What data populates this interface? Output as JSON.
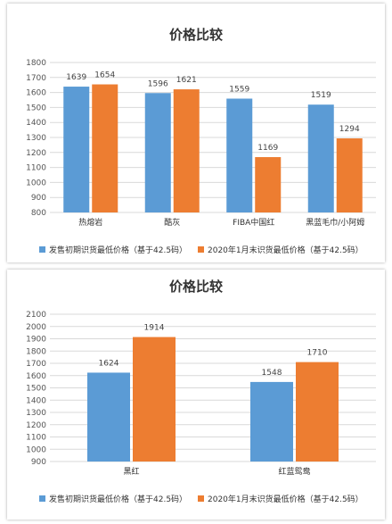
{
  "colors": {
    "series1": "#5b9bd5",
    "series2": "#ed7d31",
    "grid": "#d9d9d9"
  },
  "chart_data": [
    {
      "type": "bar",
      "title": "价格比较",
      "categories": [
        "热熔岩",
        "酷灰",
        "FIBA中国红",
        "黑蓝毛巾/小阿姆"
      ],
      "series": [
        {
          "name": "发售初期识货最低价格（基于42.5码）",
          "values": [
            1639,
            1596,
            1559,
            1519
          ]
        },
        {
          "name": "2020年1月末识货最低价格（基于42.5码）",
          "values": [
            1654,
            1621,
            1169,
            1294
          ]
        }
      ],
      "ylim": [
        800,
        1800
      ],
      "ystep": 100,
      "grid": true,
      "legend": "bottom"
    },
    {
      "type": "bar",
      "title": "价格比较",
      "categories": [
        "黑红",
        "红蓝鸳鸯"
      ],
      "series": [
        {
          "name": "发售初期识货最低价格（基于42.5码）",
          "values": [
            1624,
            1548
          ]
        },
        {
          "name": "2020年1月末识货最低价格（基于42.5码）",
          "values": [
            1914,
            1710
          ]
        }
      ],
      "ylim": [
        900,
        2100
      ],
      "ystep": 100,
      "grid": true,
      "legend": "bottom"
    }
  ]
}
